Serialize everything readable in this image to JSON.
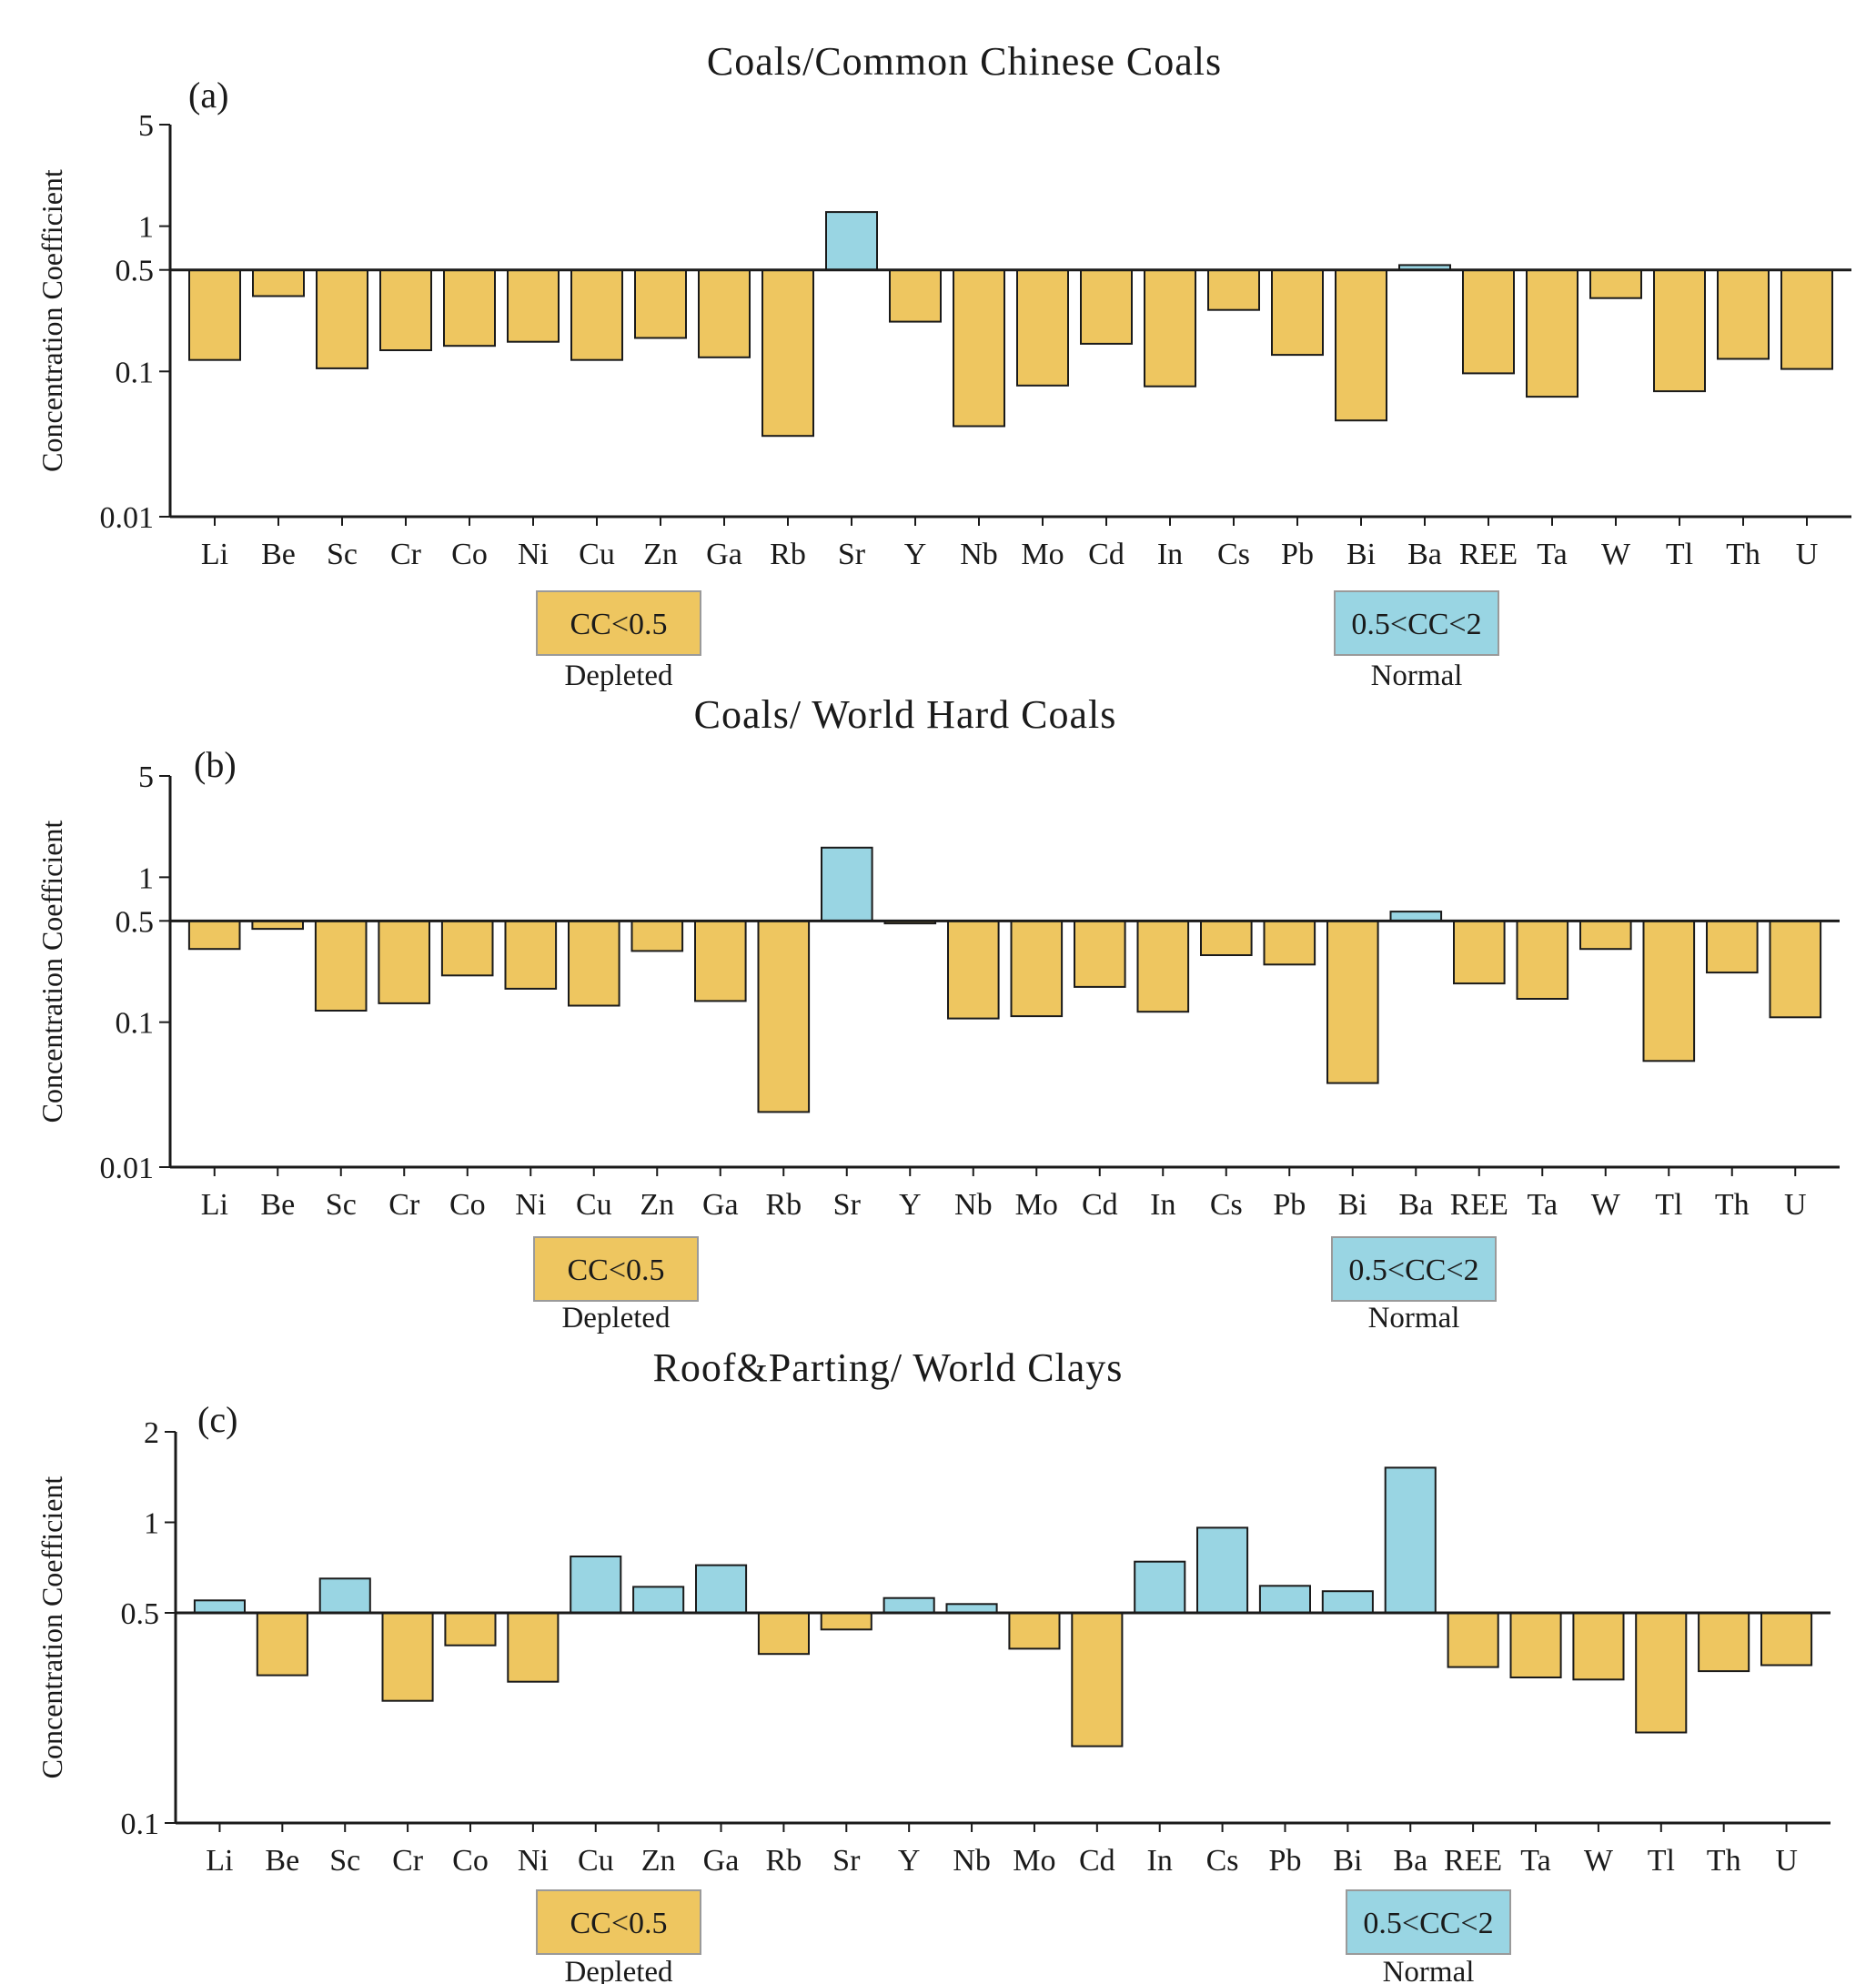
{
  "chart_data": [
    {
      "type": "bar",
      "panel_label": "(a)",
      "title": "Coals/Common Chinese Coals",
      "ylabel": "Concentration Coefficient",
      "xlabel": "",
      "yscale": "log",
      "ylim": [
        0.01,
        5
      ],
      "yticks": [
        "0.01",
        "0.1",
        "0.5",
        "1",
        "5"
      ],
      "baseline": 0.5,
      "grid": false,
      "categories": [
        "Li",
        "Be",
        "Sc",
        "Cr",
        "Co",
        "Ni",
        "Cu",
        "Zn",
        "Ga",
        "Rb",
        "Sr",
        "Y",
        "Nb",
        "Mo",
        "Cd",
        "In",
        "Cs",
        "Pb",
        "Bi",
        "Ba",
        "REE",
        "Ta",
        "W",
        "Tl",
        "Th",
        "U"
      ],
      "values": [
        0.12,
        0.33,
        0.105,
        0.14,
        0.15,
        0.16,
        0.12,
        0.17,
        0.125,
        0.036,
        1.25,
        0.22,
        0.042,
        0.08,
        0.155,
        0.079,
        0.265,
        0.13,
        0.046,
        0.54,
        0.097,
        0.067,
        0.32,
        0.073,
        0.122,
        0.104
      ],
      "legend": [
        {
          "label": "CC<0.5",
          "caption": "Depleted",
          "color": "#EEC660"
        },
        {
          "label": "0.5<CC<2",
          "caption": "Normal",
          "color": "#99D5E3"
        }
      ]
    },
    {
      "type": "bar",
      "panel_label": "(b)",
      "title": "Coals/ World Hard Coals",
      "ylabel": "Concentration Coefficient",
      "xlabel": "",
      "yscale": "log",
      "ylim": [
        0.01,
        5
      ],
      "yticks": [
        "0.01",
        "0.1",
        "0.5",
        "1",
        "5"
      ],
      "baseline": 0.5,
      "grid": false,
      "categories": [
        "Li",
        "Be",
        "Sc",
        "Cr",
        "Co",
        "Ni",
        "Cu",
        "Zn",
        "Ga",
        "Rb",
        "Sr",
        "Y",
        "Nb",
        "Mo",
        "Cd",
        "In",
        "Cs",
        "Pb",
        "Bi",
        "Ba",
        "REE",
        "Ta",
        "W",
        "Tl",
        "Th",
        "U"
      ],
      "values": [
        0.32,
        0.44,
        0.12,
        0.135,
        0.21,
        0.17,
        0.13,
        0.31,
        0.14,
        0.024,
        1.6,
        0.48,
        0.106,
        0.11,
        0.175,
        0.118,
        0.29,
        0.25,
        0.038,
        0.58,
        0.185,
        0.145,
        0.32,
        0.054,
        0.22,
        0.108
      ],
      "legend": [
        {
          "label": "CC<0.5",
          "caption": "Depleted",
          "color": "#EEC660"
        },
        {
          "label": "0.5<CC<2",
          "caption": "Normal",
          "color": "#99D5E3"
        }
      ]
    },
    {
      "type": "bar",
      "panel_label": "(c)",
      "title": "Roof&Parting/ World Clays",
      "ylabel": "Concentration Coefficient",
      "xlabel": "",
      "yscale": "log",
      "ylim": [
        0.1,
        2
      ],
      "yticks": [
        "0.1",
        "0.5",
        "1",
        "2"
      ],
      "baseline": 0.5,
      "grid": false,
      "categories": [
        "Li",
        "Be",
        "Sc",
        "Cr",
        "Co",
        "Ni",
        "Cu",
        "Zn",
        "Ga",
        "Rb",
        "Sr",
        "Y",
        "Nb",
        "Mo",
        "Cd",
        "In",
        "Cs",
        "Pb",
        "Bi",
        "Ba",
        "REE",
        "Ta",
        "W",
        "Tl",
        "Th",
        "U"
      ],
      "values": [
        0.55,
        0.31,
        0.65,
        0.255,
        0.39,
        0.295,
        0.77,
        0.61,
        0.72,
        0.365,
        0.44,
        0.56,
        0.535,
        0.38,
        0.18,
        0.74,
        0.96,
        0.615,
        0.59,
        1.52,
        0.33,
        0.305,
        0.3,
        0.2,
        0.32,
        0.335
      ],
      "legend": [
        {
          "label": "CC<0.5",
          "caption": "Depleted",
          "color": "#EEC660"
        },
        {
          "label": "0.5<CC<2",
          "caption": "Normal",
          "color": "#99D5E3"
        }
      ]
    }
  ],
  "colors": {
    "depleted": "#EEC660",
    "normal": "#99D5E3",
    "axis": "#1a1a1a"
  }
}
